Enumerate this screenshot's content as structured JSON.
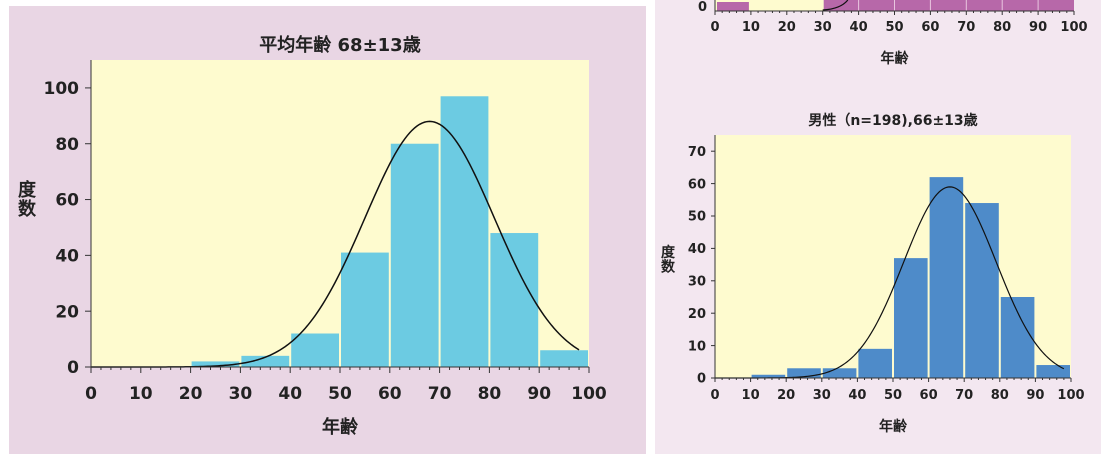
{
  "colors": {
    "left_panel_bg": "#e9d6e4",
    "right_panel_bg": "#f3e7f0",
    "plot_bg": "#fefbcf",
    "bar_cyan": "#6ccbe2",
    "bar_blue": "#4e8bc9",
    "bar_magenta": "#b768a9",
    "curve": "#111111"
  },
  "chart_data": [
    {
      "type": "bar",
      "title": "平均年齢 68±13歳",
      "xlabel": "年齢",
      "ylabel": "度数",
      "xlim": [
        0,
        100
      ],
      "ylim": [
        0,
        110
      ],
      "xticks": [
        0,
        10,
        20,
        30,
        40,
        50,
        60,
        70,
        80,
        90,
        100
      ],
      "yticks": [
        0,
        20,
        40,
        60,
        80,
        100
      ],
      "bins": [
        {
          "x0": 20,
          "x1": 30,
          "value": 2
        },
        {
          "x0": 30,
          "x1": 40,
          "value": 4
        },
        {
          "x0": 40,
          "x1": 50,
          "value": 12
        },
        {
          "x0": 50,
          "x1": 60,
          "value": 41
        },
        {
          "x0": 60,
          "x1": 70,
          "value": 80
        },
        {
          "x0": 70,
          "x1": 80,
          "value": 97
        },
        {
          "x0": 80,
          "x1": 90,
          "value": 48
        },
        {
          "x0": 90,
          "x1": 100,
          "value": 6
        }
      ],
      "bar_color": "#6ccbe2",
      "normal_curve": {
        "mean": 68,
        "sd": 13,
        "peak": 88
      }
    },
    {
      "type": "bar",
      "title": "",
      "xlabel": "年齢",
      "xlim": [
        0,
        100
      ],
      "xticks": [
        0,
        10,
        20,
        30,
        40,
        50,
        60,
        70,
        80,
        90,
        100
      ],
      "yticks": [
        0
      ],
      "bar_color": "#b768a9",
      "partial": true
    },
    {
      "type": "bar",
      "title": "男性（n=198),66±13歳",
      "xlabel": "年齢",
      "ylabel": "度数",
      "xlim": [
        0,
        100
      ],
      "ylim": [
        0,
        75
      ],
      "xticks": [
        0,
        10,
        20,
        30,
        40,
        50,
        60,
        70,
        80,
        90,
        100
      ],
      "yticks": [
        0,
        10,
        20,
        30,
        40,
        50,
        60,
        70
      ],
      "bins": [
        {
          "x0": 10,
          "x1": 20,
          "value": 1
        },
        {
          "x0": 20,
          "x1": 30,
          "value": 3
        },
        {
          "x0": 30,
          "x1": 40,
          "value": 3
        },
        {
          "x0": 40,
          "x1": 50,
          "value": 9
        },
        {
          "x0": 50,
          "x1": 60,
          "value": 37
        },
        {
          "x0": 60,
          "x1": 70,
          "value": 62
        },
        {
          "x0": 70,
          "x1": 80,
          "value": 54
        },
        {
          "x0": 80,
          "x1": 90,
          "value": 25
        },
        {
          "x0": 90,
          "x1": 100,
          "value": 4
        }
      ],
      "bar_color": "#4e8bc9",
      "normal_curve": {
        "mean": 66,
        "sd": 13,
        "peak": 59
      }
    }
  ]
}
